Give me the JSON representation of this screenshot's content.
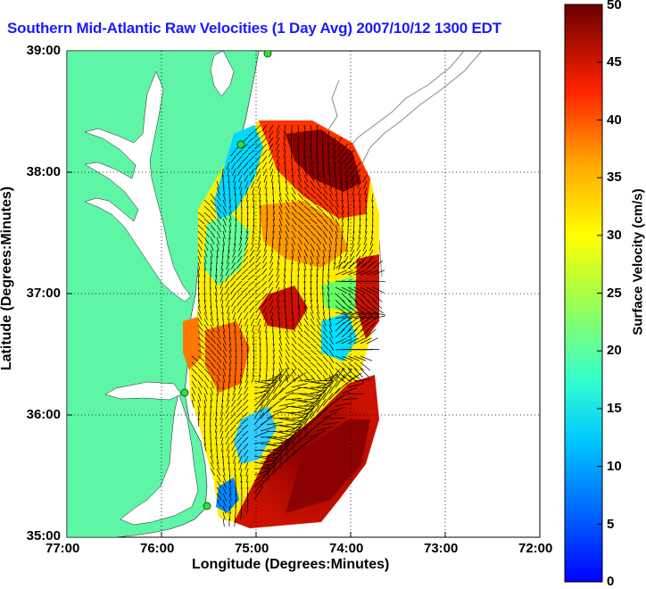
{
  "title": "Southern Mid-Atlantic Raw Velocities (1 Day Avg) 2007/10/12 1300 EDT",
  "x_axis": {
    "label": "Longitude (Degrees:Minutes)",
    "ticks": [
      "77:00",
      "76:00",
      "75:00",
      "74:00",
      "73:00",
      "72:00"
    ]
  },
  "y_axis": {
    "label": "Latitude (Degrees:Minutes)",
    "ticks": [
      "39:00",
      "38:00",
      "37:00",
      "36:00",
      "35:00"
    ]
  },
  "colorbar": {
    "label": "Surface Velocity (cm/s)",
    "ticks": [
      "50",
      "45",
      "40",
      "35",
      "30",
      "25",
      "20",
      "15",
      "10",
      "5",
      "0"
    ],
    "min": 0,
    "max": 50,
    "colormap": "jet"
  },
  "colors": {
    "land": "#5ef5a6",
    "water": "#ffffff",
    "title": "#1a1aff",
    "station": "#33dd33"
  },
  "map_extent": {
    "lon": [
      "77:00W",
      "72:00W"
    ],
    "lat": [
      "35:00N",
      "39:00N"
    ]
  },
  "gridlines": "dotted"
}
